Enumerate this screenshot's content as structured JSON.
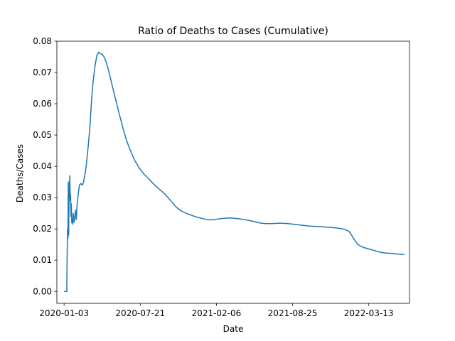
{
  "chart_data": {
    "type": "line",
    "title": "Ratio of Deaths to Cases (Cumulative)",
    "xlabel": "Date",
    "ylabel": "Deaths/Cases",
    "xlim": [
      "2019-12-15",
      "2022-06-28"
    ],
    "ylim": [
      -0.0038,
      0.08
    ],
    "x_ticks": [
      "2020-01-03",
      "2020-07-21",
      "2021-02-06",
      "2021-08-25",
      "2022-03-13"
    ],
    "y_ticks": [
      "0.00",
      "0.01",
      "0.02",
      "0.03",
      "0.04",
      "0.05",
      "0.06",
      "0.07",
      "0.08"
    ],
    "grid": false,
    "legend": "none",
    "series": [
      {
        "color": "#1f77b4",
        "points": [
          [
            "2020-01-03",
            0.0
          ],
          [
            "2020-01-05",
            0.0
          ],
          [
            "2020-01-07",
            0.0
          ],
          [
            "2020-01-09",
            0.0
          ],
          [
            "2020-01-10",
            0.0
          ],
          [
            "2020-01-11",
            0.012
          ],
          [
            "2020-01-12",
            0.02
          ],
          [
            "2020-01-13",
            0.017
          ],
          [
            "2020-01-14",
            0.035
          ],
          [
            "2020-01-15",
            0.018
          ],
          [
            "2020-01-16",
            0.03
          ],
          [
            "2020-01-17",
            0.034
          ],
          [
            "2020-01-18",
            0.037
          ],
          [
            "2020-01-19",
            0.029
          ],
          [
            "2020-01-20",
            0.031
          ],
          [
            "2020-01-21",
            0.024
          ],
          [
            "2020-01-22",
            0.028
          ],
          [
            "2020-01-23",
            0.022
          ],
          [
            "2020-01-25",
            0.0215
          ],
          [
            "2020-01-27",
            0.025
          ],
          [
            "2020-01-29",
            0.022
          ],
          [
            "2020-01-31",
            0.0235
          ],
          [
            "2020-02-02",
            0.026
          ],
          [
            "2020-02-04",
            0.023
          ],
          [
            "2020-02-06",
            0.0275
          ],
          [
            "2020-02-09",
            0.031
          ],
          [
            "2020-02-12",
            0.034
          ],
          [
            "2020-02-16",
            0.0345
          ],
          [
            "2020-02-20",
            0.034
          ],
          [
            "2020-02-23",
            0.035
          ],
          [
            "2020-02-26",
            0.037
          ],
          [
            "2020-03-01",
            0.04
          ],
          [
            "2020-03-06",
            0.046
          ],
          [
            "2020-03-11",
            0.053
          ],
          [
            "2020-03-15",
            0.061
          ],
          [
            "2020-03-19",
            0.067
          ],
          [
            "2020-03-24",
            0.072
          ],
          [
            "2020-03-29",
            0.0755
          ],
          [
            "2020-04-03",
            0.0765
          ],
          [
            "2020-04-07",
            0.076
          ],
          [
            "2020-04-12",
            0.0758
          ],
          [
            "2020-04-17",
            0.075
          ],
          [
            "2020-04-22",
            0.0735
          ],
          [
            "2020-04-28",
            0.071
          ],
          [
            "2020-05-05",
            0.0675
          ],
          [
            "2020-05-12",
            0.064
          ],
          [
            "2020-05-20",
            0.06
          ],
          [
            "2020-05-28",
            0.0562
          ],
          [
            "2020-06-06",
            0.052
          ],
          [
            "2020-06-15",
            0.0483
          ],
          [
            "2020-06-25",
            0.045
          ],
          [
            "2020-07-06",
            0.042
          ],
          [
            "2020-07-18",
            0.0395
          ],
          [
            "2020-07-31",
            0.0375
          ],
          [
            "2020-08-14",
            0.0358
          ],
          [
            "2020-08-28",
            0.034
          ],
          [
            "2020-09-11",
            0.0325
          ],
          [
            "2020-09-25",
            0.031
          ],
          [
            "2020-10-09",
            0.029
          ],
          [
            "2020-10-23",
            0.027
          ],
          [
            "2020-11-06",
            0.0257
          ],
          [
            "2020-11-20",
            0.0249
          ],
          [
            "2020-12-04",
            0.0243
          ],
          [
            "2020-12-18",
            0.0237
          ],
          [
            "2021-01-01",
            0.0233
          ],
          [
            "2021-01-15",
            0.0229
          ],
          [
            "2021-01-29",
            0.0229
          ],
          [
            "2021-02-12",
            0.0232
          ],
          [
            "2021-02-26",
            0.0234
          ],
          [
            "2021-03-12",
            0.0235
          ],
          [
            "2021-03-26",
            0.0234
          ],
          [
            "2021-04-09",
            0.0232
          ],
          [
            "2021-04-23",
            0.0229
          ],
          [
            "2021-05-07",
            0.0226
          ],
          [
            "2021-05-21",
            0.0222
          ],
          [
            "2021-06-04",
            0.0218
          ],
          [
            "2021-06-18",
            0.0217
          ],
          [
            "2021-07-02",
            0.0217
          ],
          [
            "2021-07-16",
            0.0218
          ],
          [
            "2021-07-30",
            0.0218
          ],
          [
            "2021-08-13",
            0.0217
          ],
          [
            "2021-08-27",
            0.0215
          ],
          [
            "2021-09-10",
            0.0213
          ],
          [
            "2021-09-24",
            0.0211
          ],
          [
            "2021-10-08",
            0.0209
          ],
          [
            "2021-10-22",
            0.0208
          ],
          [
            "2021-11-05",
            0.0207
          ],
          [
            "2021-11-19",
            0.0206
          ],
          [
            "2021-12-03",
            0.0205
          ],
          [
            "2021-12-17",
            0.0203
          ],
          [
            "2021-12-31",
            0.0201
          ],
          [
            "2022-01-10",
            0.0198
          ],
          [
            "2022-01-20",
            0.0192
          ],
          [
            "2022-01-28",
            0.0178
          ],
          [
            "2022-02-05",
            0.0162
          ],
          [
            "2022-02-13",
            0.015
          ],
          [
            "2022-02-21",
            0.0144
          ],
          [
            "2022-03-01",
            0.014
          ],
          [
            "2022-03-13",
            0.0136
          ],
          [
            "2022-03-27",
            0.0131
          ],
          [
            "2022-04-10",
            0.0126
          ],
          [
            "2022-04-24",
            0.0123
          ],
          [
            "2022-05-08",
            0.0122
          ],
          [
            "2022-05-22",
            0.012
          ],
          [
            "2022-06-05",
            0.0119
          ],
          [
            "2022-06-15",
            0.0118
          ]
        ]
      }
    ]
  }
}
